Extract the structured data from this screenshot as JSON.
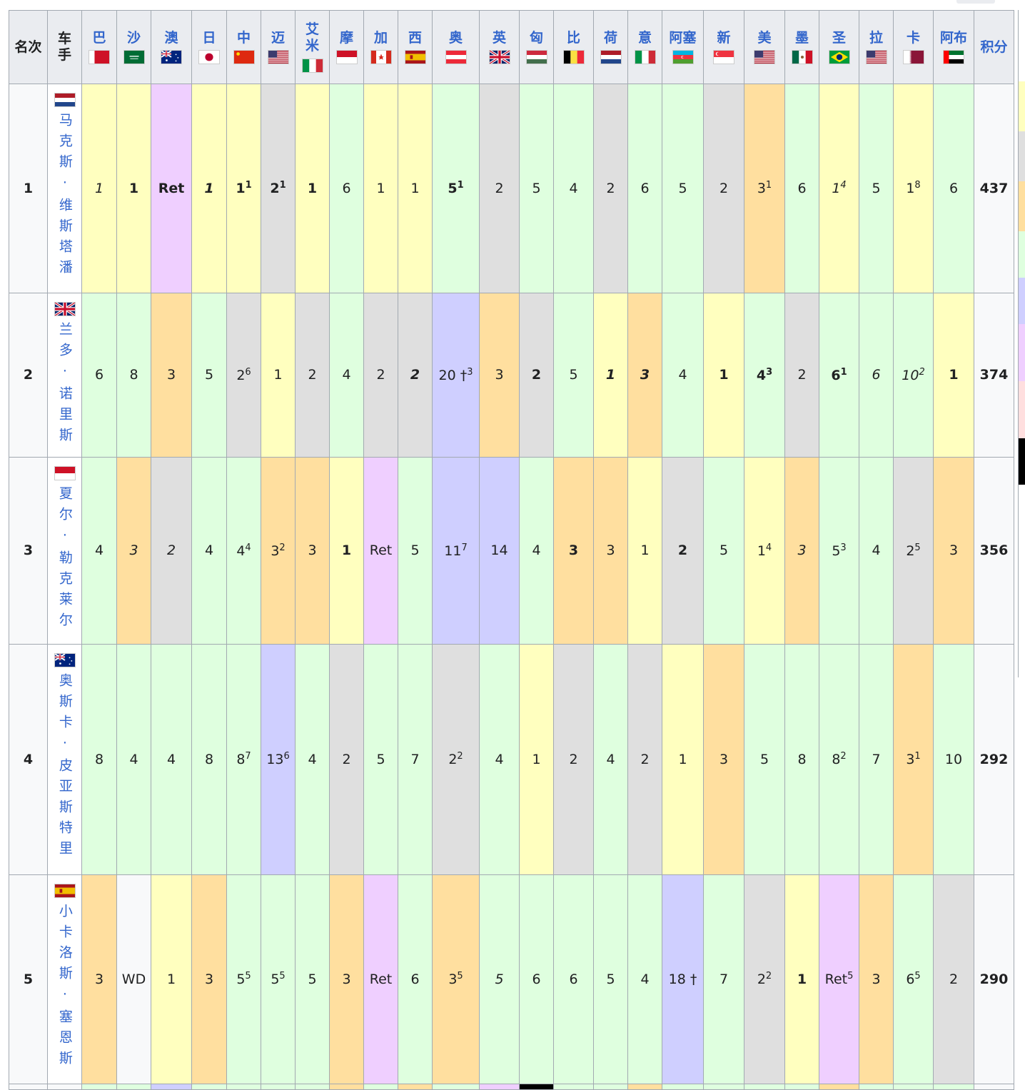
{
  "header": {
    "position": "名次",
    "driver": "车手",
    "points": "积分",
    "races": [
      {
        "abbr": "巴",
        "flag": "bahrain"
      },
      {
        "abbr": "沙",
        "flag": "saudi"
      },
      {
        "abbr": "澳",
        "flag": "australia"
      },
      {
        "abbr": "日",
        "flag": "japan"
      },
      {
        "abbr": "中",
        "flag": "china"
      },
      {
        "abbr": "迈",
        "flag": "usa"
      },
      {
        "abbr": "艾米",
        "flag": "italy"
      },
      {
        "abbr": "摩",
        "flag": "monaco"
      },
      {
        "abbr": "加",
        "flag": "canada"
      },
      {
        "abbr": "西",
        "flag": "spain"
      },
      {
        "abbr": "奥",
        "flag": "austria"
      },
      {
        "abbr": "英",
        "flag": "uk"
      },
      {
        "abbr": "匈",
        "flag": "hungary"
      },
      {
        "abbr": "比",
        "flag": "belgium"
      },
      {
        "abbr": "荷",
        "flag": "netherlands"
      },
      {
        "abbr": "意",
        "flag": "italy"
      },
      {
        "abbr": "阿塞",
        "flag": "azerbaijan"
      },
      {
        "abbr": "新",
        "flag": "singapore"
      },
      {
        "abbr": "美",
        "flag": "usa"
      },
      {
        "abbr": "墨",
        "flag": "mexico"
      },
      {
        "abbr": "圣",
        "flag": "brazil"
      },
      {
        "abbr": "拉",
        "flag": "usa"
      },
      {
        "abbr": "卡",
        "flag": "qatar"
      },
      {
        "abbr": "阿布",
        "flag": "uae"
      }
    ]
  },
  "colors": {
    "gold": "#ffffbf",
    "silver": "#dfdfdf",
    "bronze": "#ffdf9f",
    "green": "#dfffdf",
    "blue": "#cfcfff",
    "purple": "#efcfff",
    "white": "#f8f9fa",
    "black": "#000000"
  },
  "rows": [
    {
      "pos": "1",
      "driver": "马克斯·维斯塔潘",
      "flag": "netherlands",
      "points": "437",
      "results": [
        {
          "v": "1",
          "c": "gold",
          "i": true
        },
        {
          "v": "1",
          "c": "gold",
          "b": true
        },
        {
          "v": "Ret",
          "c": "purple",
          "b": true
        },
        {
          "v": "1",
          "c": "gold",
          "i": true,
          "b": true
        },
        {
          "v": "1",
          "sup": "1",
          "c": "gold",
          "b": true
        },
        {
          "v": "2",
          "sup": "1",
          "c": "silver",
          "b": true
        },
        {
          "v": "1",
          "c": "gold",
          "b": true
        },
        {
          "v": "6",
          "c": "green"
        },
        {
          "v": "1",
          "c": "gold"
        },
        {
          "v": "1",
          "c": "gold"
        },
        {
          "v": "5",
          "sup": "1",
          "c": "green",
          "b": true
        },
        {
          "v": "2",
          "c": "silver"
        },
        {
          "v": "5",
          "c": "green"
        },
        {
          "v": "4",
          "c": "green"
        },
        {
          "v": "2",
          "c": "silver"
        },
        {
          "v": "6",
          "c": "green"
        },
        {
          "v": "5",
          "c": "green"
        },
        {
          "v": "2",
          "c": "silver"
        },
        {
          "v": "3",
          "sup": "1",
          "c": "bronze"
        },
        {
          "v": "6",
          "c": "green"
        },
        {
          "v": "1",
          "sup": "4",
          "c": "gold",
          "i": true
        },
        {
          "v": "5",
          "c": "green"
        },
        {
          "v": "1",
          "sup": "8",
          "c": "gold"
        },
        {
          "v": "6",
          "c": "green"
        }
      ]
    },
    {
      "pos": "2",
      "driver": "兰多·诺里斯",
      "flag": "uk",
      "points": "374",
      "results": [
        {
          "v": "6",
          "c": "green"
        },
        {
          "v": "8",
          "c": "green"
        },
        {
          "v": "3",
          "c": "bronze"
        },
        {
          "v": "5",
          "c": "green"
        },
        {
          "v": "2",
          "sup": "6",
          "c": "silver"
        },
        {
          "v": "1",
          "c": "gold"
        },
        {
          "v": "2",
          "c": "silver"
        },
        {
          "v": "4",
          "c": "green"
        },
        {
          "v": "2",
          "c": "silver"
        },
        {
          "v": "2",
          "c": "silver",
          "i": true,
          "b": true
        },
        {
          "v": "20 †",
          "sup": "3",
          "c": "blue"
        },
        {
          "v": "3",
          "c": "bronze"
        },
        {
          "v": "2",
          "c": "silver",
          "b": true
        },
        {
          "v": "5",
          "c": "green"
        },
        {
          "v": "1",
          "c": "gold",
          "i": true,
          "b": true
        },
        {
          "v": "3",
          "c": "bronze",
          "i": true,
          "b": true
        },
        {
          "v": "4",
          "c": "green"
        },
        {
          "v": "1",
          "c": "gold",
          "b": true
        },
        {
          "v": "4",
          "sup": "3",
          "c": "green",
          "b": true
        },
        {
          "v": "2",
          "c": "silver"
        },
        {
          "v": "6",
          "sup": "1",
          "c": "green",
          "b": true
        },
        {
          "v": "6",
          "c": "green",
          "i": true
        },
        {
          "v": "10",
          "sup": "2",
          "c": "green",
          "i": true
        },
        {
          "v": "1",
          "c": "gold",
          "b": true
        }
      ]
    },
    {
      "pos": "3",
      "driver": "夏尔·勒克莱尔",
      "flag": "monaco",
      "points": "356",
      "results": [
        {
          "v": "4",
          "c": "green"
        },
        {
          "v": "3",
          "c": "bronze",
          "i": true
        },
        {
          "v": "2",
          "c": "silver",
          "i": true
        },
        {
          "v": "4",
          "c": "green"
        },
        {
          "v": "4",
          "sup": "4",
          "c": "green"
        },
        {
          "v": "3",
          "sup": "2",
          "c": "bronze"
        },
        {
          "v": "3",
          "c": "bronze"
        },
        {
          "v": "1",
          "c": "gold",
          "b": true
        },
        {
          "v": "Ret",
          "c": "purple"
        },
        {
          "v": "5",
          "c": "green"
        },
        {
          "v": "11",
          "sup": "7",
          "c": "blue"
        },
        {
          "v": "14",
          "c": "blue"
        },
        {
          "v": "4",
          "c": "green"
        },
        {
          "v": "3",
          "c": "bronze",
          "b": true
        },
        {
          "v": "3",
          "c": "bronze"
        },
        {
          "v": "1",
          "c": "gold"
        },
        {
          "v": "2",
          "c": "silver",
          "b": true
        },
        {
          "v": "5",
          "c": "green"
        },
        {
          "v": "1",
          "sup": "4",
          "c": "gold"
        },
        {
          "v": "3",
          "c": "bronze",
          "i": true
        },
        {
          "v": "5",
          "sup": "3",
          "c": "green"
        },
        {
          "v": "4",
          "c": "green"
        },
        {
          "v": "2",
          "sup": "5",
          "c": "silver"
        },
        {
          "v": "3",
          "c": "bronze"
        }
      ]
    },
    {
      "pos": "4",
      "driver": "奥斯卡·皮亚斯特里",
      "flag": "australia",
      "points": "292",
      "results": [
        {
          "v": "8",
          "c": "green"
        },
        {
          "v": "4",
          "c": "green"
        },
        {
          "v": "4",
          "c": "green"
        },
        {
          "v": "8",
          "c": "green"
        },
        {
          "v": "8",
          "sup": "7",
          "c": "green"
        },
        {
          "v": "13",
          "sup": "6",
          "c": "blue"
        },
        {
          "v": "4",
          "c": "green"
        },
        {
          "v": "2",
          "c": "silver"
        },
        {
          "v": "5",
          "c": "green"
        },
        {
          "v": "7",
          "c": "green"
        },
        {
          "v": "2",
          "sup": "2",
          "c": "silver"
        },
        {
          "v": "4",
          "c": "green"
        },
        {
          "v": "1",
          "c": "gold"
        },
        {
          "v": "2",
          "c": "silver"
        },
        {
          "v": "4",
          "c": "green"
        },
        {
          "v": "2",
          "c": "silver"
        },
        {
          "v": "1",
          "c": "gold"
        },
        {
          "v": "3",
          "c": "bronze"
        },
        {
          "v": "5",
          "c": "green"
        },
        {
          "v": "8",
          "c": "green"
        },
        {
          "v": "8",
          "sup": "2",
          "c": "green"
        },
        {
          "v": "7",
          "c": "green"
        },
        {
          "v": "3",
          "sup": "1",
          "c": "bronze"
        },
        {
          "v": "10",
          "c": "green"
        }
      ]
    },
    {
      "pos": "5",
      "driver": "小卡洛斯·塞恩斯",
      "flag": "spain",
      "points": "290",
      "results": [
        {
          "v": "3",
          "c": "bronze"
        },
        {
          "v": "WD",
          "c": "white"
        },
        {
          "v": "1",
          "c": "gold"
        },
        {
          "v": "3",
          "c": "bronze"
        },
        {
          "v": "5",
          "sup": "5",
          "c": "green"
        },
        {
          "v": "5",
          "sup": "5",
          "c": "green"
        },
        {
          "v": "5",
          "c": "green"
        },
        {
          "v": "3",
          "c": "bronze"
        },
        {
          "v": "Ret",
          "c": "purple"
        },
        {
          "v": "6",
          "c": "green"
        },
        {
          "v": "3",
          "sup": "5",
          "c": "bronze"
        },
        {
          "v": "5",
          "c": "green",
          "i": true
        },
        {
          "v": "6",
          "c": "green"
        },
        {
          "v": "6",
          "c": "green"
        },
        {
          "v": "5",
          "c": "green"
        },
        {
          "v": "4",
          "c": "green"
        },
        {
          "v": "18 †",
          "c": "blue"
        },
        {
          "v": "7",
          "c": "green"
        },
        {
          "v": "2",
          "sup": "2",
          "c": "silver"
        },
        {
          "v": "1",
          "c": "gold",
          "b": true
        },
        {
          "v": "Ret",
          "sup": "5",
          "c": "purple"
        },
        {
          "v": "3",
          "c": "bronze"
        },
        {
          "v": "6",
          "sup": "5",
          "c": "green"
        },
        {
          "v": "2",
          "c": "silver"
        }
      ]
    }
  ],
  "partial_row_colors": [
    "white",
    "white",
    "green",
    "green",
    "blue",
    "green",
    "green",
    "green",
    "green",
    "bronze",
    "green",
    "bronze",
    "green",
    "purple",
    "black",
    "green",
    "green",
    "bronze",
    "green",
    "green",
    "green",
    "green",
    "bronze",
    "green",
    "green",
    "green"
  ]
}
